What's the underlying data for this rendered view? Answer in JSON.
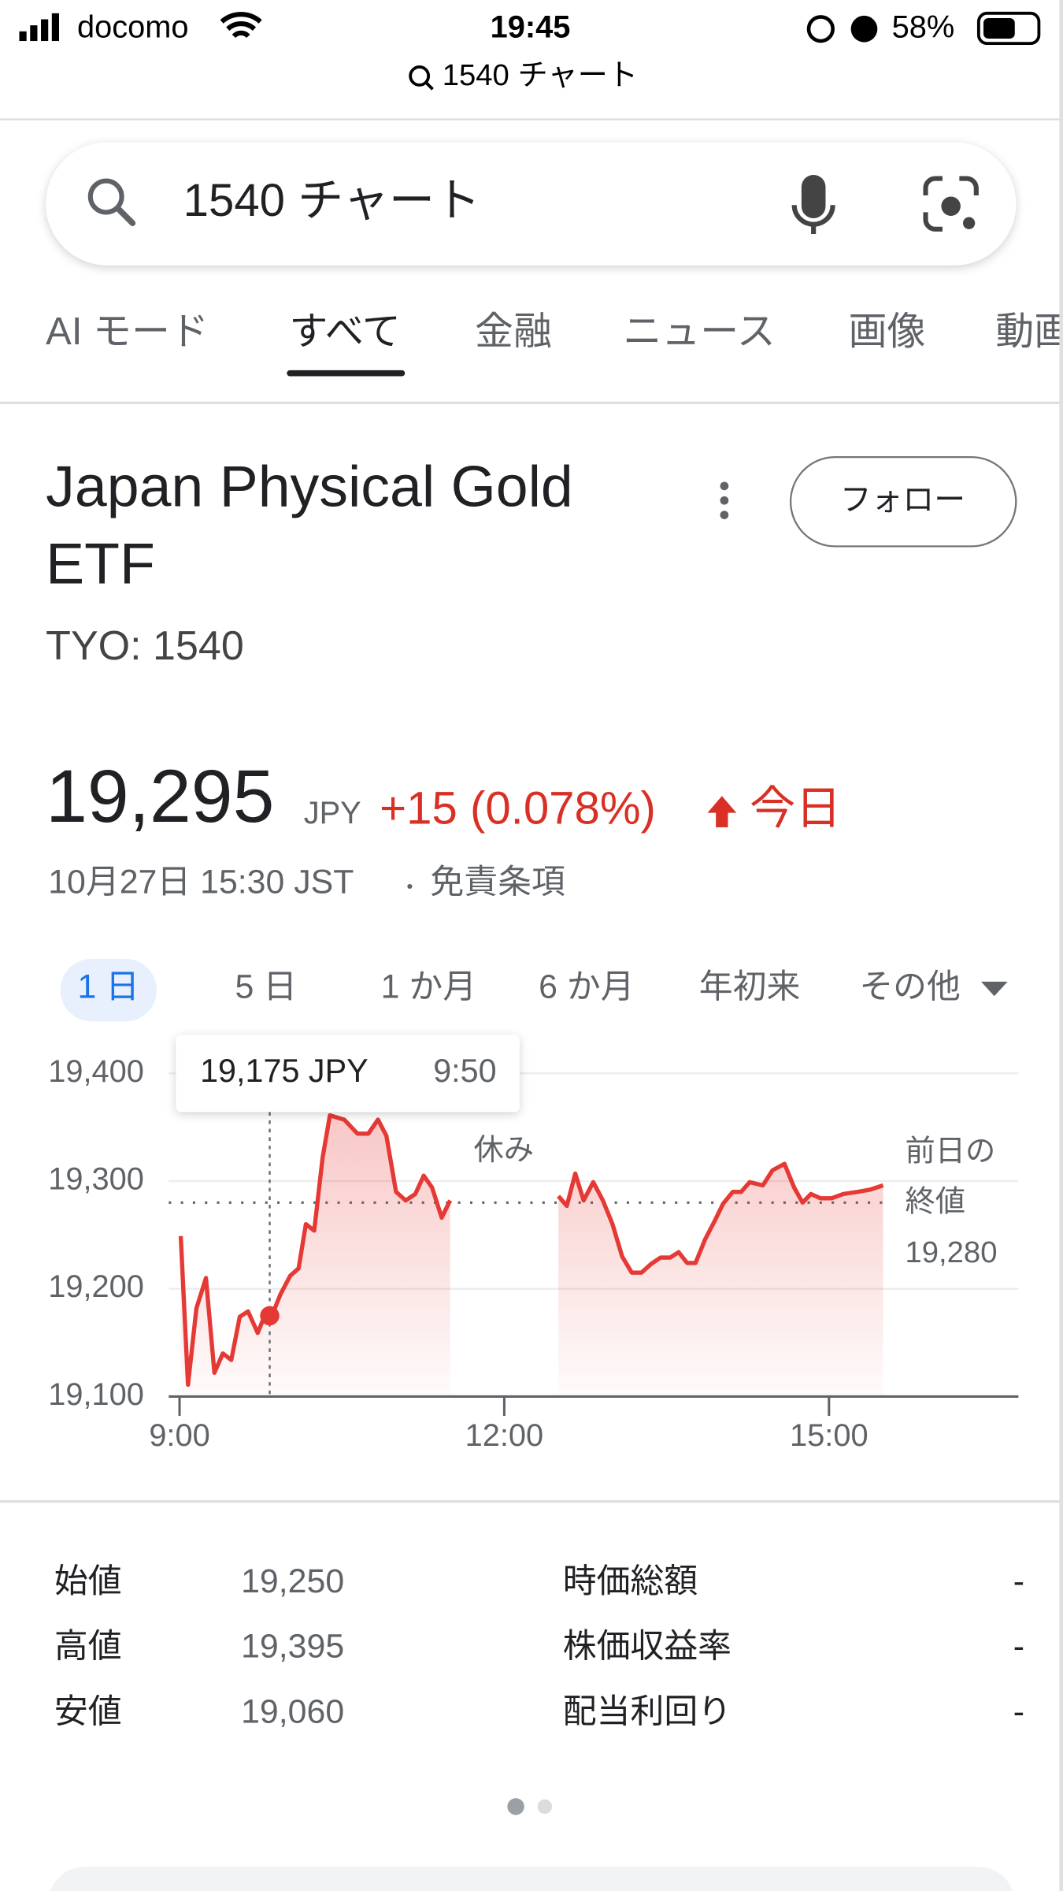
{
  "status_bar": {
    "carrier": "docomo",
    "time": "19:45",
    "battery": "58%"
  },
  "url": "1540 チャート",
  "search": {
    "query": "1540 チャート"
  },
  "tabs": [
    "AI モード",
    "すべて",
    "金融",
    "ニュース",
    "画像",
    "動画"
  ],
  "stock": {
    "title": [
      "Japan Physical Gold",
      "ETF"
    ],
    "ticker": "TYO: 1540",
    "follow": "フォロー",
    "price": "19,295",
    "currency": "JPY",
    "change": "+15 (0.078%)",
    "period": "今日",
    "timestamp": "10月27日 15:30 JST",
    "disclaimer": "免責条項"
  },
  "range_tabs": [
    "1 日",
    "5 日",
    "1 か月",
    "6 か月",
    "年初来",
    "その他"
  ],
  "chart_data": {
    "type": "line",
    "color": "#e53935",
    "grid": true,
    "xlim": [
      8.9,
      16.75
    ],
    "xticks": [
      {
        "value": 9,
        "label": "9:00"
      },
      {
        "value": 12,
        "label": "12:00"
      },
      {
        "value": 15,
        "label": "15:00"
      }
    ],
    "ylim": [
      19100,
      19400
    ],
    "yticks": [
      {
        "value": 19100,
        "label": "19,100"
      },
      {
        "value": 19200,
        "label": "19,200"
      },
      {
        "value": 19300,
        "label": "19,300"
      },
      {
        "value": 19400,
        "label": "19,400"
      }
    ],
    "x": [
      9.011,
      9.078,
      9.156,
      9.244,
      9.322,
      9.4,
      9.478,
      9.556,
      9.633,
      9.722,
      9.778,
      9.844,
      9.933,
      10.022,
      10.1,
      10.167,
      10.244,
      10.322,
      10.389,
      10.522,
      10.644,
      10.744,
      10.833,
      10.911,
      11.0,
      11.089,
      11.178,
      11.256,
      11.333,
      11.422,
      11.5,
      12.0,
      12.5,
      12.578,
      12.656,
      12.733,
      12.822,
      12.911,
      13.0,
      13.089,
      13.178,
      13.267,
      13.356,
      13.444,
      13.533,
      13.611,
      13.689,
      13.767,
      13.856,
      13.944,
      14.022,
      14.111,
      14.189,
      14.267,
      14.389,
      14.478,
      14.589,
      14.678,
      14.756,
      14.833,
      14.922,
      15.022,
      15.133,
      15.267,
      15.378,
      15.5
    ],
    "values": [
      19249,
      19111,
      19182,
      19210,
      19122,
      19140,
      19134,
      19174,
      19179,
      19159,
      19173,
      19173,
      19195,
      19212,
      19219,
      19260,
      19254,
      19322,
      19361,
      19357,
      19344,
      19344,
      19357,
      19342,
      19290,
      19282,
      19288,
      19305,
      19294,
      19266,
      19282,
      null,
      19286,
      19277,
      19307,
      19282,
      19299,
      19282,
      19260,
      19230,
      19215,
      19215,
      19223,
      19229,
      19229,
      19234,
      19224,
      19224,
      19246,
      19263,
      19279,
      19290,
      19290,
      19299,
      19296,
      19310,
      19316,
      19294,
      19280,
      19288,
      19284,
      19284,
      19288,
      19290,
      19292,
      19296
    ],
    "highlight": {
      "x": 9.833,
      "value": 19175,
      "label": "19,175 JPY",
      "time": "9:50"
    },
    "annotation": "休み",
    "reference_line": {
      "value": 19280,
      "label": "19,280",
      "caption": [
        "前日の",
        "終値"
      ]
    }
  },
  "stats": [
    [
      "始値",
      "19,250",
      "時価総額",
      "-"
    ],
    [
      "高値",
      "19,395",
      "株価収益率",
      "-"
    ],
    [
      "安値",
      "19,060",
      "配当利回り",
      "-"
    ]
  ]
}
